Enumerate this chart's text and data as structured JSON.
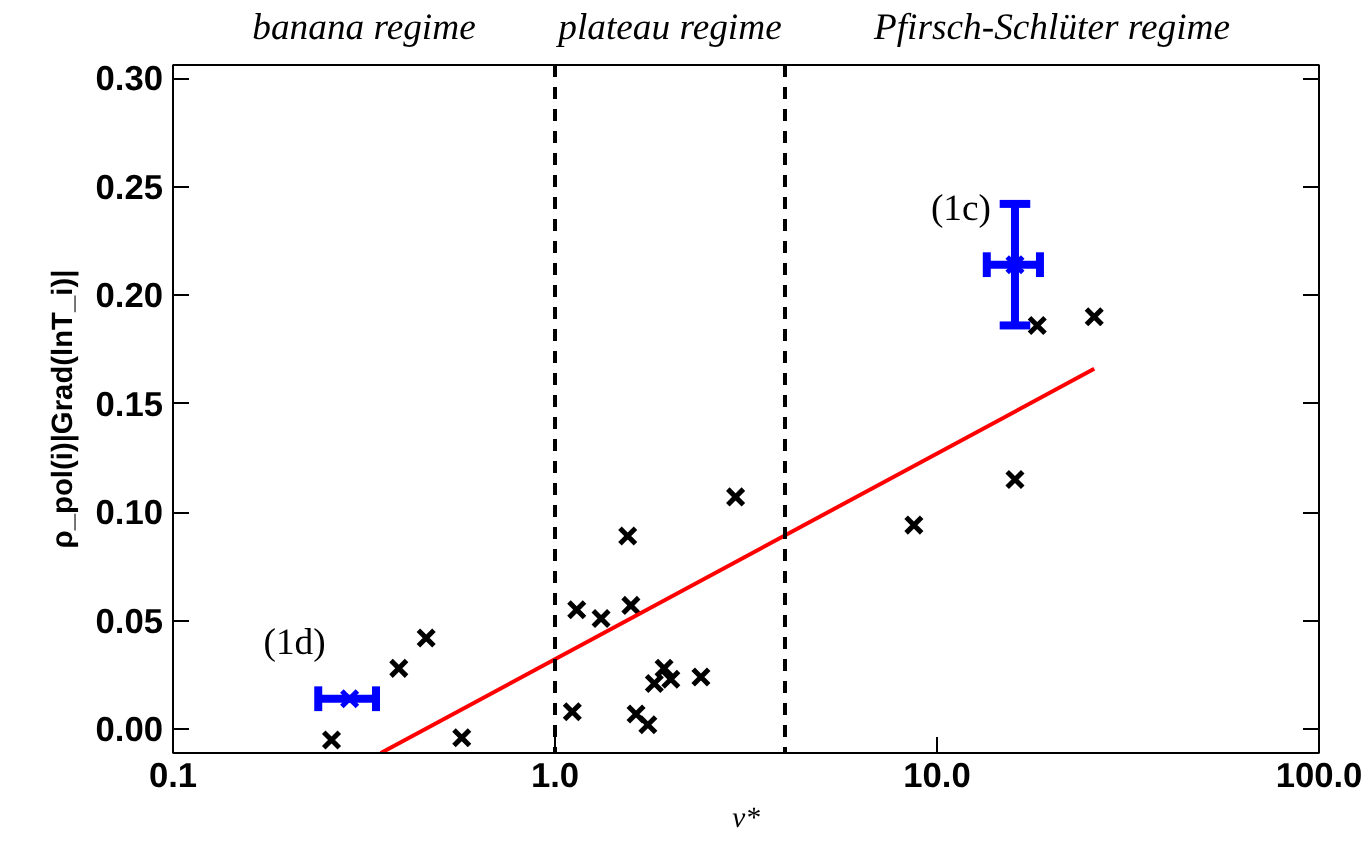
{
  "chart_data": {
    "type": "scatter",
    "xlabel": "ν*",
    "ylabel": "ρ_pol(i)|Grad(lnT_i)|",
    "log": "x",
    "xlim": [
      0.1,
      100
    ],
    "ylim": [
      -0.011,
      0.306
    ],
    "xticks": [
      {
        "value": 0.1,
        "label": "0.1"
      },
      {
        "value": 1,
        "label": "1.0"
      },
      {
        "value": 10,
        "label": "10.0"
      },
      {
        "value": 100,
        "label": "100.0"
      }
    ],
    "yticks": [
      {
        "value": 0,
        "label": "0.00"
      },
      {
        "value": 0.05,
        "label": "0.05"
      },
      {
        "value": 0.1,
        "label": "0.10"
      },
      {
        "value": 0.15,
        "label": "0.15"
      },
      {
        "value": 0.2,
        "label": "0.20"
      },
      {
        "value": 0.25,
        "label": "0.25"
      },
      {
        "value": 0.3,
        "label": "0.30"
      }
    ],
    "grid": false,
    "series": [
      {
        "marker": "cross",
        "color": "#000000",
        "x": [
          0.26,
          0.39,
          0.46,
          0.57,
          1.11,
          1.14,
          1.32,
          1.55,
          1.58,
          1.63,
          1.75,
          1.82,
          1.93,
          2.01,
          2.41,
          2.97,
          8.7,
          16.0,
          18.3,
          25.8
        ],
        "values": [
          -0.005,
          0.028,
          0.042,
          -0.004,
          0.008,
          0.055,
          0.051,
          0.089,
          0.057,
          0.007,
          0.002,
          0.021,
          0.028,
          0.023,
          0.024,
          0.107,
          0.094,
          0.115,
          0.186,
          0.19
        ]
      },
      {
        "type": "scatter",
        "marker": "cross",
        "color": "#0000ff",
        "x": [
          0.29,
          16.0
        ],
        "values": [
          0.014,
          0.214
        ],
        "errors": [
          null,
          [
            0.186,
            0.242
          ]
        ],
        "xerrors": [
          [
            0.24,
            0.34
          ],
          [
            13.5,
            18.6
          ]
        ]
      },
      {
        "type": "line",
        "marker": "none",
        "color": "#ff0000",
        "x": [
          0.35,
          25.8
        ],
        "values": [
          -0.011,
          0.166
        ]
      }
    ],
    "ref_lines": [
      {
        "axis": "x",
        "value": 1.0,
        "color": "#000000",
        "line_style": "dashed"
      },
      {
        "axis": "x",
        "value": 4.0,
        "color": "#000000",
        "line_style": "dashed"
      }
    ],
    "annotations": [
      "banana regime",
      "plateau regime",
      "Pfirsch-Schlüter regime",
      {
        "text": "(1c)",
        "x": 16.0,
        "y": 0.214
      },
      {
        "text": "(1d)",
        "x": 0.29,
        "y": 0.014
      }
    ]
  }
}
